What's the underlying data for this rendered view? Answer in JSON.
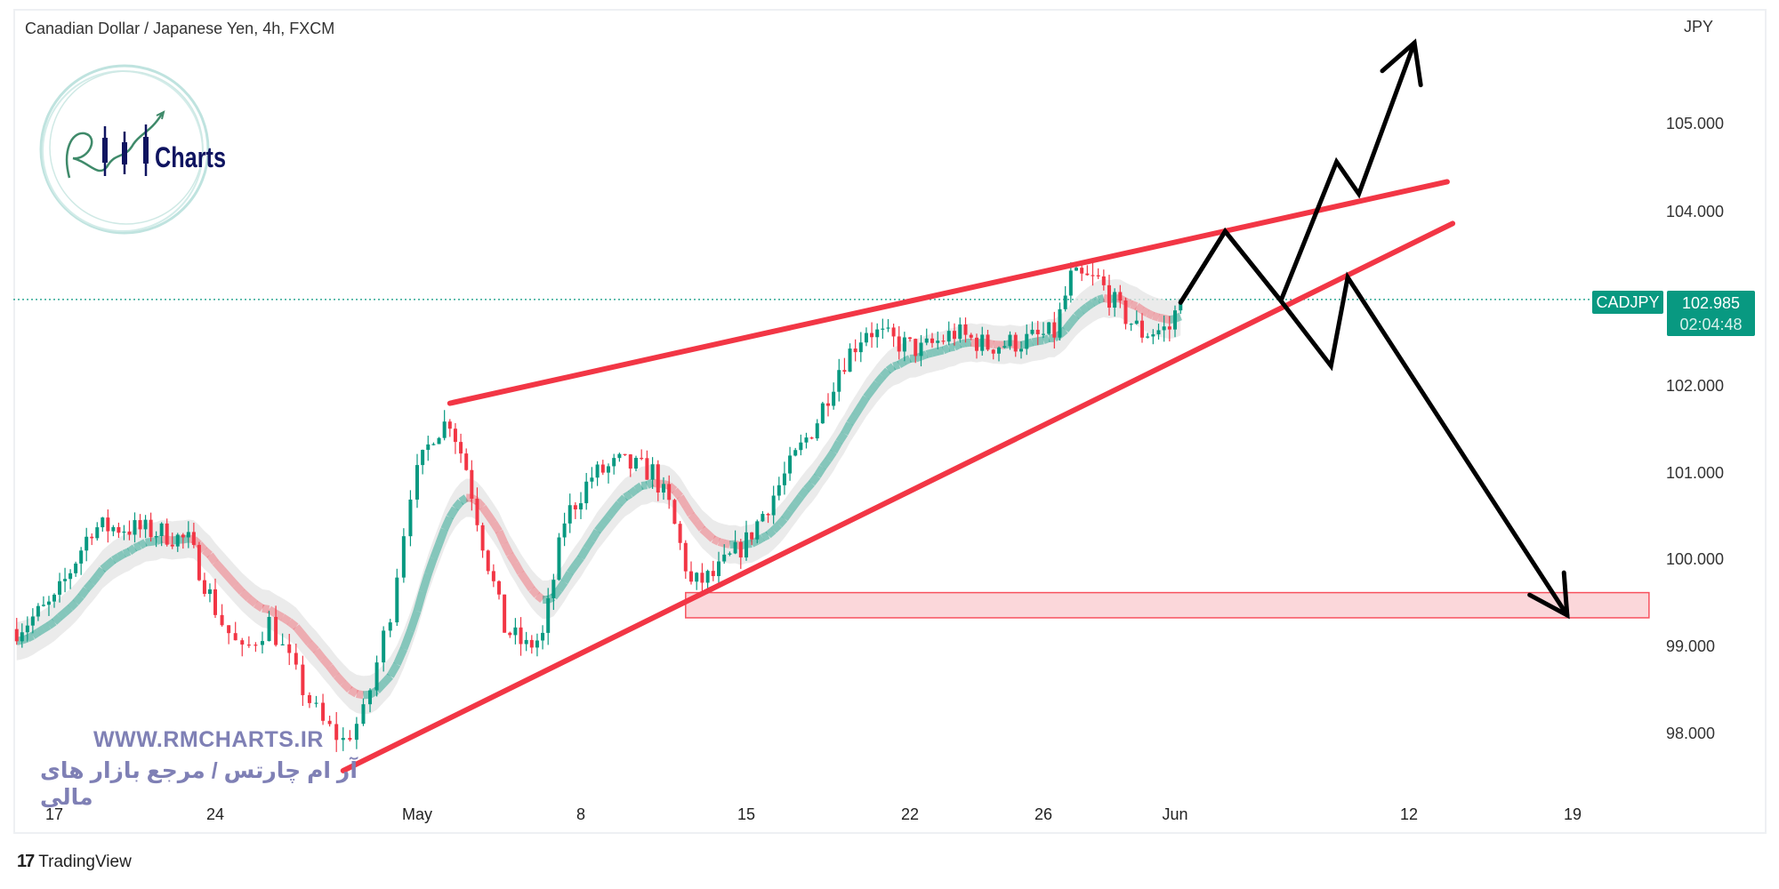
{
  "header": {
    "title": "Canadian Dollar / Japanese Yen, 4h, FXCM"
  },
  "price_axis": {
    "unit": "JPY",
    "labels": [
      "105.000",
      "104.000",
      "102.000",
      "101.000",
      "100.000",
      "99.000",
      "98.000"
    ]
  },
  "last_price": {
    "symbol": "CADJPY",
    "price": "102.985",
    "countdown": "02:04:48"
  },
  "watermark": {
    "url": "WWW.RMCHARTS.IR",
    "tagline": "آر ام چارتس / مرجع بازار های مالی",
    "logo_text": "RM Charts"
  },
  "footer": {
    "brand": "TradingView",
    "logo_glyph": "17"
  },
  "colors": {
    "up": "#089981",
    "down": "#f23645",
    "trendline": "#f23645",
    "projection": "#000000",
    "zone_fill": "#fbd7da",
    "zone_border": "#f7525f",
    "ribbon_band": "#e6e6e6"
  },
  "chart_data": {
    "type": "candlestick",
    "title": "Canadian Dollar / Japanese Yen, 4h, FXCM",
    "timeframe": "4h",
    "ylabel": "JPY",
    "ylim": [
      97.3,
      106.3
    ],
    "y_ticks": [
      105,
      104,
      102,
      101,
      100,
      99,
      98
    ],
    "x_ticks": [
      {
        "label": "17",
        "date": "2023-04-17"
      },
      {
        "label": "24",
        "date": "2023-04-24"
      },
      {
        "label": "May",
        "date": "2023-05-01"
      },
      {
        "label": "8",
        "date": "2023-05-08"
      },
      {
        "label": "15",
        "date": "2023-05-15"
      },
      {
        "label": "22",
        "date": "2023-05-22"
      },
      {
        "label": "26",
        "date": "2023-05-26"
      },
      {
        "label": "Jun",
        "date": "2023-06-01"
      },
      {
        "label": "12",
        "date": "2023-06-12"
      },
      {
        "label": "19",
        "date": "2023-06-19"
      }
    ],
    "grid": false,
    "last_close": 102.985,
    "close_path": [
      [
        "2023-04-13T20",
        99.19
      ],
      [
        "2023-04-17T00",
        99.5
      ],
      [
        "2023-04-18T04",
        100.36
      ],
      [
        "2023-04-19T04",
        100.36
      ],
      [
        "2023-04-20T08",
        100.3
      ],
      [
        "2023-04-21T04",
        100.2
      ],
      [
        "2023-04-24T04",
        99.27
      ],
      [
        "2023-04-24T16",
        98.9
      ],
      [
        "2023-04-25T08",
        99.27
      ],
      [
        "2023-04-26T04",
        98.5
      ],
      [
        "2023-04-26T16",
        98.1
      ],
      [
        "2023-04-27T04",
        97.9
      ],
      [
        "2023-04-27T16",
        98.2
      ],
      [
        "2023-04-28T08",
        99.4
      ],
      [
        "2023-04-28T20",
        100.8
      ],
      [
        "2023-05-01T12",
        101.45
      ],
      [
        "2023-05-02T00",
        101.6
      ],
      [
        "2023-05-02T12",
        101.05
      ],
      [
        "2023-05-03T00",
        100.2
      ],
      [
        "2023-05-03T16",
        99.2
      ],
      [
        "2023-05-04T08",
        98.98
      ],
      [
        "2023-05-04T20",
        99.1
      ],
      [
        "2023-05-05T12",
        100.45
      ],
      [
        "2023-05-08T08",
        100.95
      ],
      [
        "2023-05-09T04",
        101.1
      ],
      [
        "2023-05-10T04",
        101.0
      ],
      [
        "2023-05-10T16",
        100.6
      ],
      [
        "2023-05-11T08",
        99.7
      ],
      [
        "2023-05-12T00",
        99.8
      ],
      [
        "2023-05-15T00",
        100.2
      ],
      [
        "2023-05-16T04",
        100.95
      ],
      [
        "2023-05-17T04",
        101.6
      ],
      [
        "2023-05-17T20",
        102.2
      ],
      [
        "2023-05-18T16",
        102.65
      ],
      [
        "2023-05-19T12",
        102.5
      ],
      [
        "2023-05-22T08",
        102.4
      ],
      [
        "2023-05-23T08",
        102.6
      ],
      [
        "2023-05-24T08",
        102.45
      ],
      [
        "2023-05-25T08",
        102.5
      ],
      [
        "2023-05-26T08",
        102.6
      ],
      [
        "2023-05-26T20",
        103.23
      ],
      [
        "2023-05-29T16",
        103.2
      ],
      [
        "2023-05-30T08",
        102.85
      ],
      [
        "2023-05-31T00",
        102.6
      ],
      [
        "2023-05-31T20",
        102.65
      ],
      [
        "2023-06-01T04",
        102.985
      ]
    ],
    "drawings": {
      "upper_trendline": [
        [
          "2023-05-02T00",
          101.79
        ],
        [
          "2023-06-13T04",
          104.34
        ]
      ],
      "lower_trendline": [
        [
          "2023-04-27T04",
          97.56
        ],
        [
          "2023-06-13T08",
          103.86
        ]
      ],
      "target_zone": {
        "from": "2023-05-11T04",
        "to": "2023-06-21T08",
        "low": 99.32,
        "high": 99.61
      },
      "bullish_projection": [
        [
          "2023-06-01T04",
          102.95
        ],
        [
          "2023-06-02T12",
          103.77
        ],
        [
          "2023-06-06T04",
          102.97
        ],
        [
          "2023-06-07T20",
          104.57
        ],
        [
          "2023-06-08T12",
          104.2
        ],
        [
          "2023-06-12T04",
          105.94
        ]
      ],
      "bearish_projection": [
        [
          "2023-06-01T04",
          102.95
        ],
        [
          "2023-06-02T12",
          103.77
        ],
        [
          "2023-06-06T04",
          102.97
        ],
        [
          "2023-06-07T16",
          102.22
        ],
        [
          "2023-06-08T04",
          103.24
        ],
        [
          "2023-06-16T20",
          99.35
        ]
      ]
    }
  }
}
